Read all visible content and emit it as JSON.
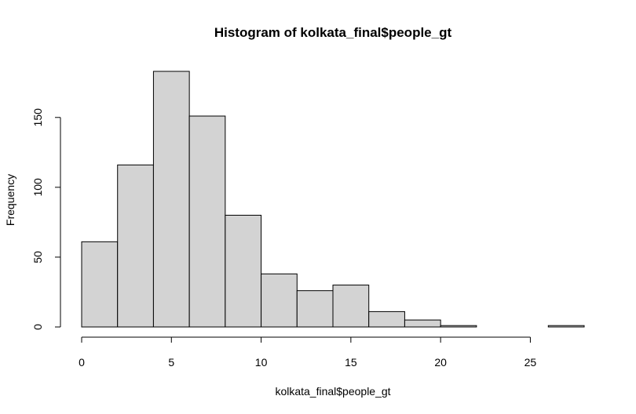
{
  "chart_data": {
    "type": "bar",
    "title": "Histogram of kolkata_final$people_gt",
    "xlabel": "kolkata_final$people_gt",
    "ylabel": "Frequency",
    "bin_edges": [
      0,
      2,
      4,
      6,
      8,
      10,
      12,
      14,
      16,
      18,
      20,
      22,
      24,
      26,
      28
    ],
    "values": [
      61,
      116,
      183,
      151,
      80,
      38,
      26,
      30,
      11,
      5,
      1,
      0,
      0,
      1
    ],
    "xlim": [
      0,
      28
    ],
    "ylim": [
      0,
      183
    ],
    "x_ticks": [
      0,
      5,
      10,
      15,
      20,
      25
    ],
    "y_ticks": [
      0,
      50,
      100,
      150
    ],
    "bar_color": "#d3d3d3",
    "grid": false,
    "legend": "none"
  }
}
